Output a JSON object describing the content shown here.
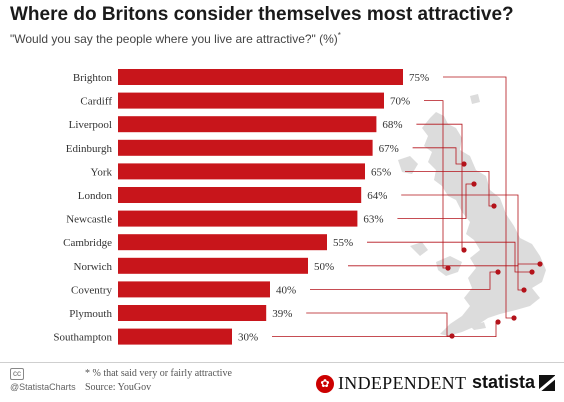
{
  "header": {
    "title": "Where do Britons consider themselves most attractive?",
    "subtitle": "\"Would you say the people where you live are attractive?\" (%)",
    "subtitle_mark": "*"
  },
  "chart_data": {
    "type": "bar",
    "orientation": "horizontal",
    "categories": [
      "Brighton",
      "Cardiff",
      "Liverpool",
      "Edinburgh",
      "York",
      "London",
      "Newcastle",
      "Cambridge",
      "Norwich",
      "Coventry",
      "Plymouth",
      "Southampton"
    ],
    "values": [
      75,
      70,
      68,
      67,
      65,
      64,
      63,
      55,
      50,
      40,
      39,
      30
    ],
    "value_labels": [
      "75%",
      "70%",
      "68%",
      "67%",
      "65%",
      "64%",
      "63%",
      "55%",
      "50%",
      "40%",
      "39%",
      "30%"
    ],
    "xlim": [
      0,
      100
    ],
    "bar_color": "#c8151b",
    "grid": false,
    "legend": "none"
  },
  "map": {
    "land_color": "#dcdcdc",
    "pin_color": "#b3121a"
  },
  "footer": {
    "cc_badge": "cc",
    "handle": "@StatistaCharts",
    "footnote": "* % that said very or fairly attractive",
    "source": "Source: YouGov",
    "independent_logo": "INDEPENDENT",
    "statista_logo": "statista"
  },
  "colors": {
    "title": "#1a1a1a",
    "bar": "#c8151b",
    "connector": "#b3121a"
  }
}
